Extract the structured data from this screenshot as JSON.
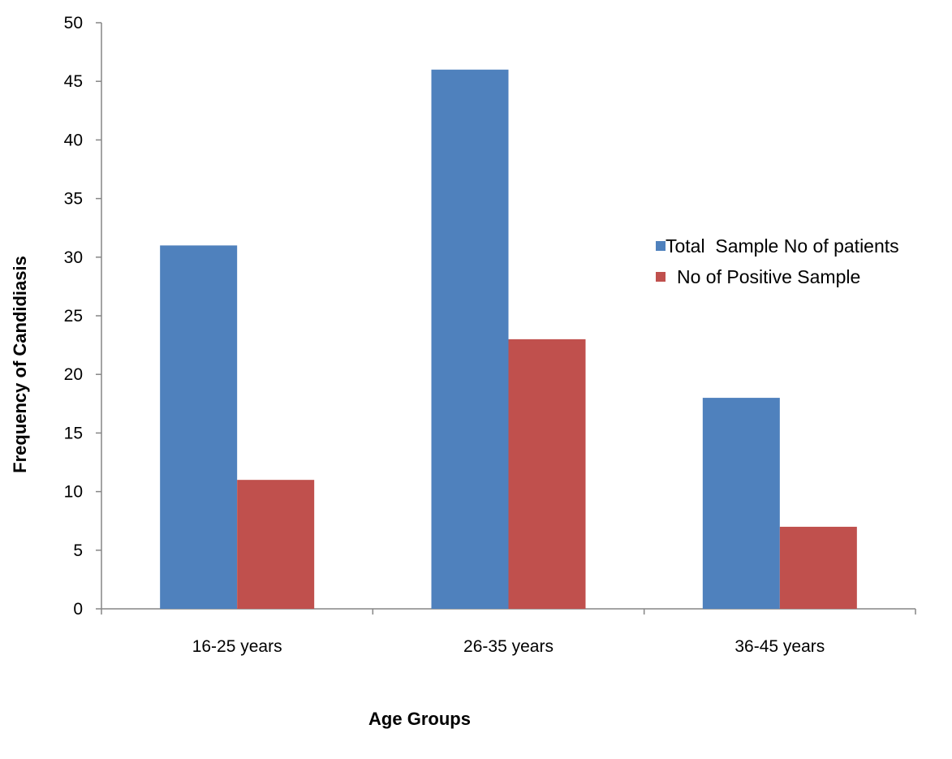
{
  "chart_data": {
    "type": "bar",
    "title": "",
    "xlabel": "Age Groups",
    "ylabel": "Frequency of Candidiasis",
    "categories": [
      "16-25 years",
      "26-35 years",
      "36-45 years"
    ],
    "series": [
      {
        "name": "Total  Sample No of patients",
        "values": [
          31,
          46,
          18
        ],
        "color": "#4F81BD"
      },
      {
        "name": "No of Positive Sample",
        "values": [
          11,
          23,
          7
        ],
        "color": "#C0504D"
      }
    ],
    "ylim": [
      0,
      50
    ],
    "yticks": [
      "0",
      "5",
      "10",
      "15",
      "20",
      "25",
      "30",
      "35",
      "40",
      "45",
      "50"
    ],
    "grid": false,
    "legend_position": "right"
  }
}
